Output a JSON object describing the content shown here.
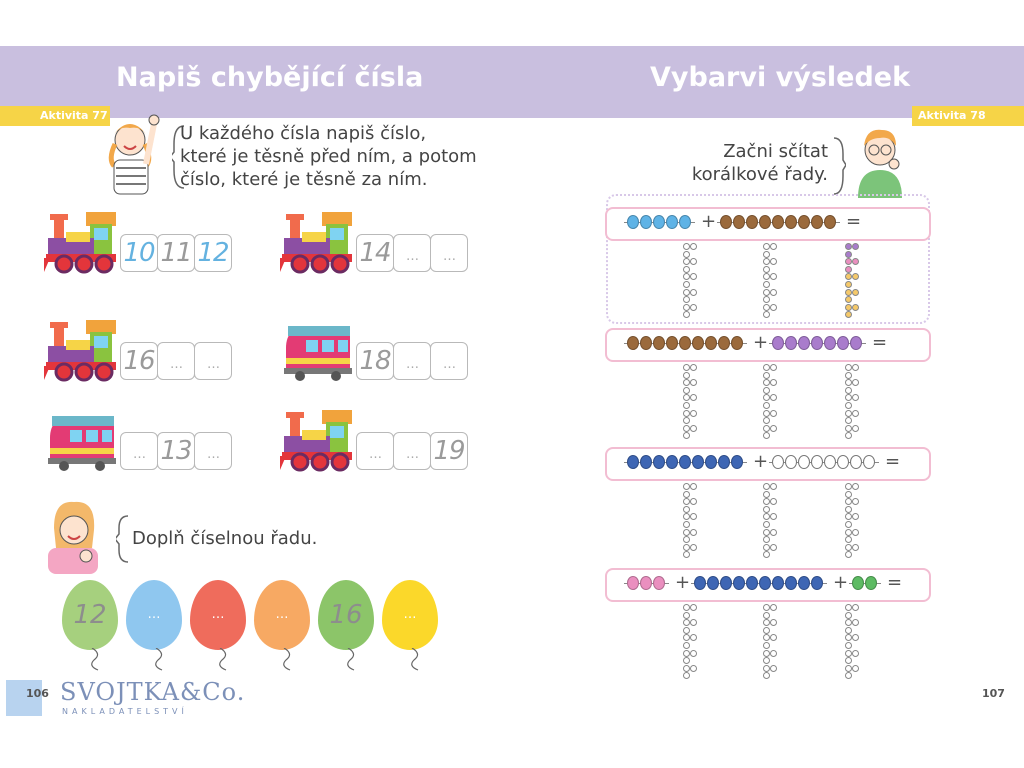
{
  "left": {
    "title": "Napiš chybějící čísla",
    "tag": "Aktivita 77",
    "instruction": [
      "U každého čísla napiš číslo,",
      "které je těsně před ním, a potom",
      "číslo, které je těsně za ním."
    ],
    "trains": [
      {
        "boxes": [
          "10",
          "11",
          "12"
        ],
        "style": [
          "blue",
          "plain",
          "blue"
        ]
      },
      {
        "boxes": [
          "14",
          "…",
          "…"
        ],
        "style": [
          "plain",
          "dots",
          "dots"
        ]
      },
      {
        "boxes": [
          "16",
          "…",
          "…"
        ],
        "style": [
          "plain",
          "dots",
          "dots"
        ]
      },
      {
        "boxes": [
          "18",
          "…",
          "…"
        ],
        "style": [
          "plain",
          "dots",
          "dots"
        ]
      },
      {
        "boxes": [
          "…",
          "13",
          "…"
        ],
        "style": [
          "dots",
          "plain",
          "dots"
        ]
      },
      {
        "boxes": [
          "…",
          "…",
          "19"
        ],
        "style": [
          "dots",
          "dots",
          "plain"
        ]
      }
    ],
    "instruction2": "Doplň číselnou řadu.",
    "eggs": [
      {
        "text": "12",
        "color": "#a6d07e"
      },
      {
        "text": "…",
        "color": "#8fc7ef"
      },
      {
        "text": "…",
        "color": "#ef6c5c"
      },
      {
        "text": "…",
        "color": "#f7a963"
      },
      {
        "text": "16",
        "color": "#8cc569"
      },
      {
        "text": "…",
        "color": "#fbd82a"
      }
    ],
    "page_number": "106",
    "publisher": "SVOJTKA&Co.",
    "publisher_sub": "NAKLADATELSTVÍ"
  },
  "right": {
    "title": "Vybarvi výsledek",
    "tag": "Aktivita 78",
    "instruction": [
      "Začni sčítat",
      "korálkové řady."
    ],
    "rows": [
      {
        "groups": [
          {
            "count": 5,
            "color": "#5fb3e6"
          },
          {
            "count": 9,
            "color": "#9b6a3c"
          }
        ],
        "sign": "+",
        "eq": "="
      },
      {
        "groups": [
          {
            "count": 9,
            "color": "#9b6a3c"
          },
          {
            "count": 7,
            "color": "#a97ccc"
          }
        ],
        "sign": "+",
        "eq": "="
      },
      {
        "groups": [
          {
            "count": 9,
            "color": "#3e66b4"
          },
          {
            "count": 8,
            "color": "#ffffff"
          }
        ],
        "sign": "+",
        "eq": "="
      },
      {
        "groups": [
          {
            "count": 3,
            "color": "#ea8fbf"
          },
          {
            "count": 10,
            "color": "#3e66b4"
          },
          {
            "count": 2,
            "color": "#5dbb63"
          }
        ],
        "sign": "+",
        "eq": "="
      }
    ],
    "page_number": "107"
  },
  "colors": {
    "band": "#c9bfdf",
    "tag": "#f6d447",
    "frame": "#f2bdd2"
  }
}
